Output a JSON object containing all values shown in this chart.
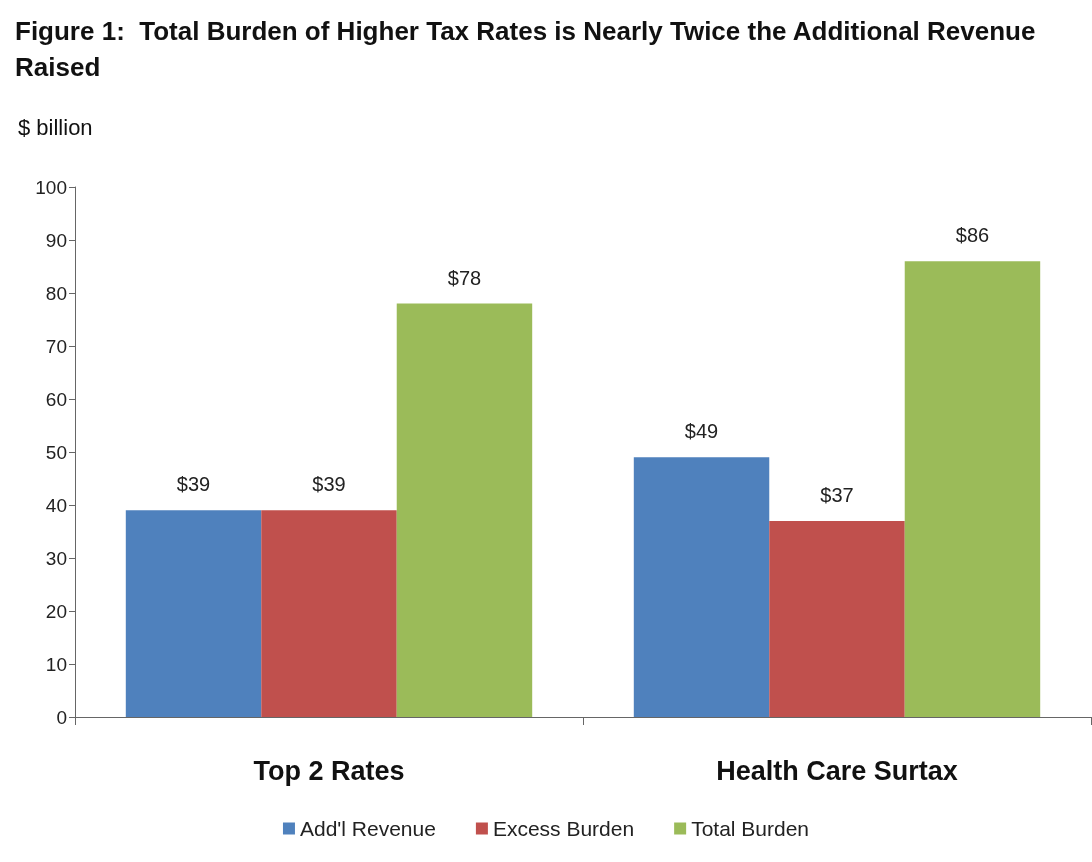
{
  "chart_data": {
    "type": "bar",
    "title": "Figure 1:  Total Burden of Higher Tax Rates is Nearly Twice the Additional Revenue Raised",
    "ylabel": "$ billion",
    "categories": [
      "Top 2 Rates",
      "Health Care Surtax"
    ],
    "series": [
      {
        "name": "Add'l Revenue",
        "color": "#4f81bd",
        "values": [
          39,
          49
        ],
        "value_labels": [
          "$39",
          "$49"
        ]
      },
      {
        "name": "Excess Burden",
        "color": "#c0504d",
        "values": [
          39,
          37
        ],
        "value_labels": [
          "$39",
          "$37"
        ]
      },
      {
        "name": "Total Burden",
        "color": "#9bbb59",
        "values": [
          78,
          86
        ],
        "value_labels": [
          "$78",
          "$86"
        ]
      }
    ],
    "ylim": [
      0,
      100
    ],
    "yticks": [
      0,
      10,
      20,
      30,
      40,
      50,
      60,
      70,
      80,
      90,
      100
    ],
    "grid": false,
    "legend": "bottom"
  }
}
